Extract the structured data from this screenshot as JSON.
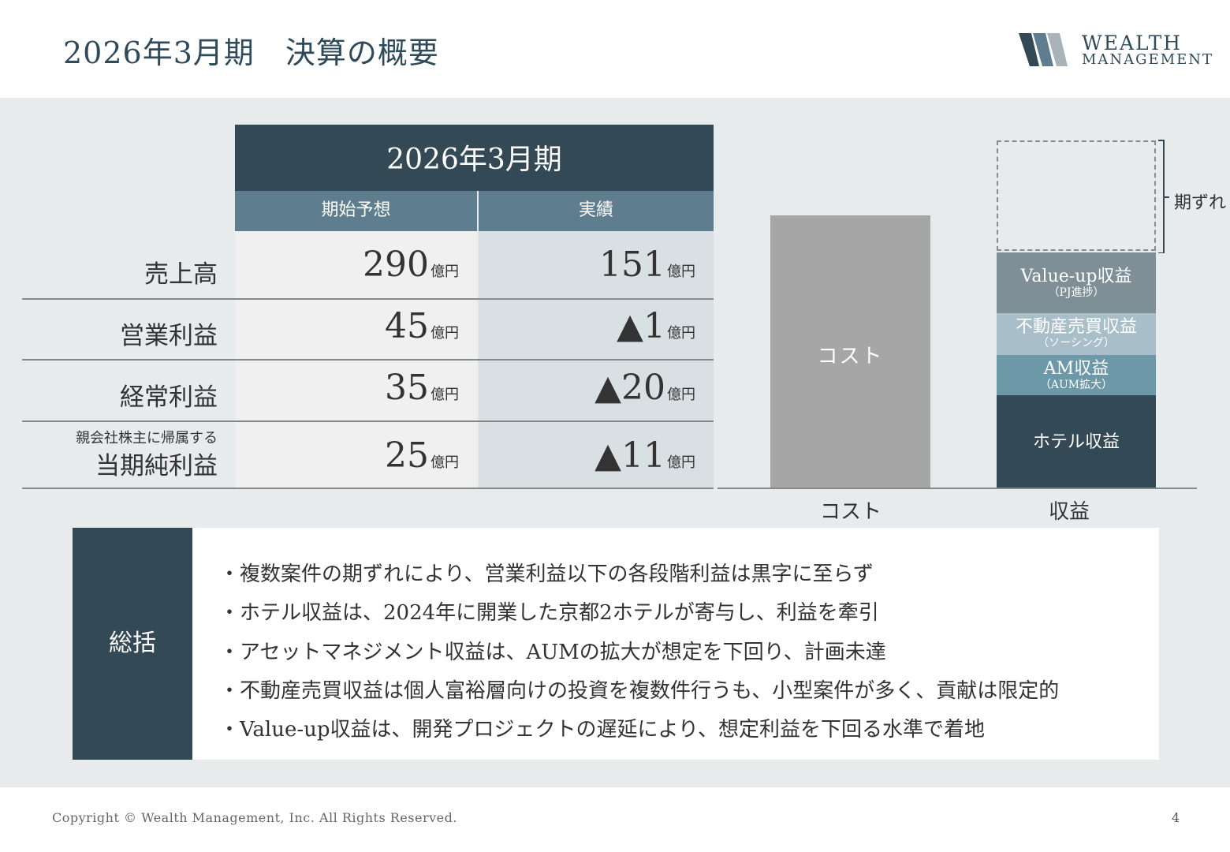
{
  "header": {
    "title": "2026年3月期　決算の概要",
    "logo_line1": "WEALTH",
    "logo_line2": "MANAGEMENT"
  },
  "table": {
    "period": "2026年3月期",
    "col_forecast": "期始予想",
    "col_actual": "実績",
    "unit": "億円",
    "rows": [
      {
        "label": "売上高",
        "label_small": "",
        "forecast": "290",
        "actual": "151"
      },
      {
        "label": "営業利益",
        "label_small": "",
        "forecast": "45",
        "actual": "▲1"
      },
      {
        "label": "経常利益",
        "label_small": "",
        "forecast": "35",
        "actual": "▲20"
      },
      {
        "label": "当期純利益",
        "label_small": "親会社株主に帰属する",
        "forecast": "25",
        "actual": "▲11"
      }
    ]
  },
  "chart": {
    "bars": [
      {
        "name": "コスト",
        "segments": [
          {
            "label": "コスト",
            "sub": ""
          }
        ]
      },
      {
        "name": "収益",
        "segments": [
          {
            "label": "Value-up収益",
            "sub": "（PJ進捗）"
          },
          {
            "label": "不動産売買収益",
            "sub": "（ソーシング）"
          },
          {
            "label": "AM収益",
            "sub": "（AUM拡大）"
          },
          {
            "label": "ホテル収益",
            "sub": ""
          }
        ]
      }
    ],
    "bracket_label": "期ずれ",
    "colors": {
      "cost": "#a6a6a6",
      "value_up": "#7f8f98",
      "real_estate": "#a8bfc9",
      "am": "#6d98a8",
      "hotel": "#334a56"
    }
  },
  "summary": {
    "tag": "総括",
    "bullets": [
      "・複数案件の期ずれにより、営業利益以下の各段階利益は黒字に至らず",
      "・ホテル収益は、2024年に開業した京都2ホテルが寄与し、利益を牽引",
      "・アセットマネジメント収益は、AUMの拡大が想定を下回り、計画未達",
      "・不動産売買収益は個人富裕層向けの投資を複数件行うも、小型案件が多く、貢献は限定的",
      "・Value-up収益は、開発プロジェクトの遅延により、想定利益を下回る水準で着地"
    ]
  },
  "footer": {
    "copyright": "Copyright © Wealth Management, Inc. All Rights Reserved.",
    "page": "4"
  }
}
